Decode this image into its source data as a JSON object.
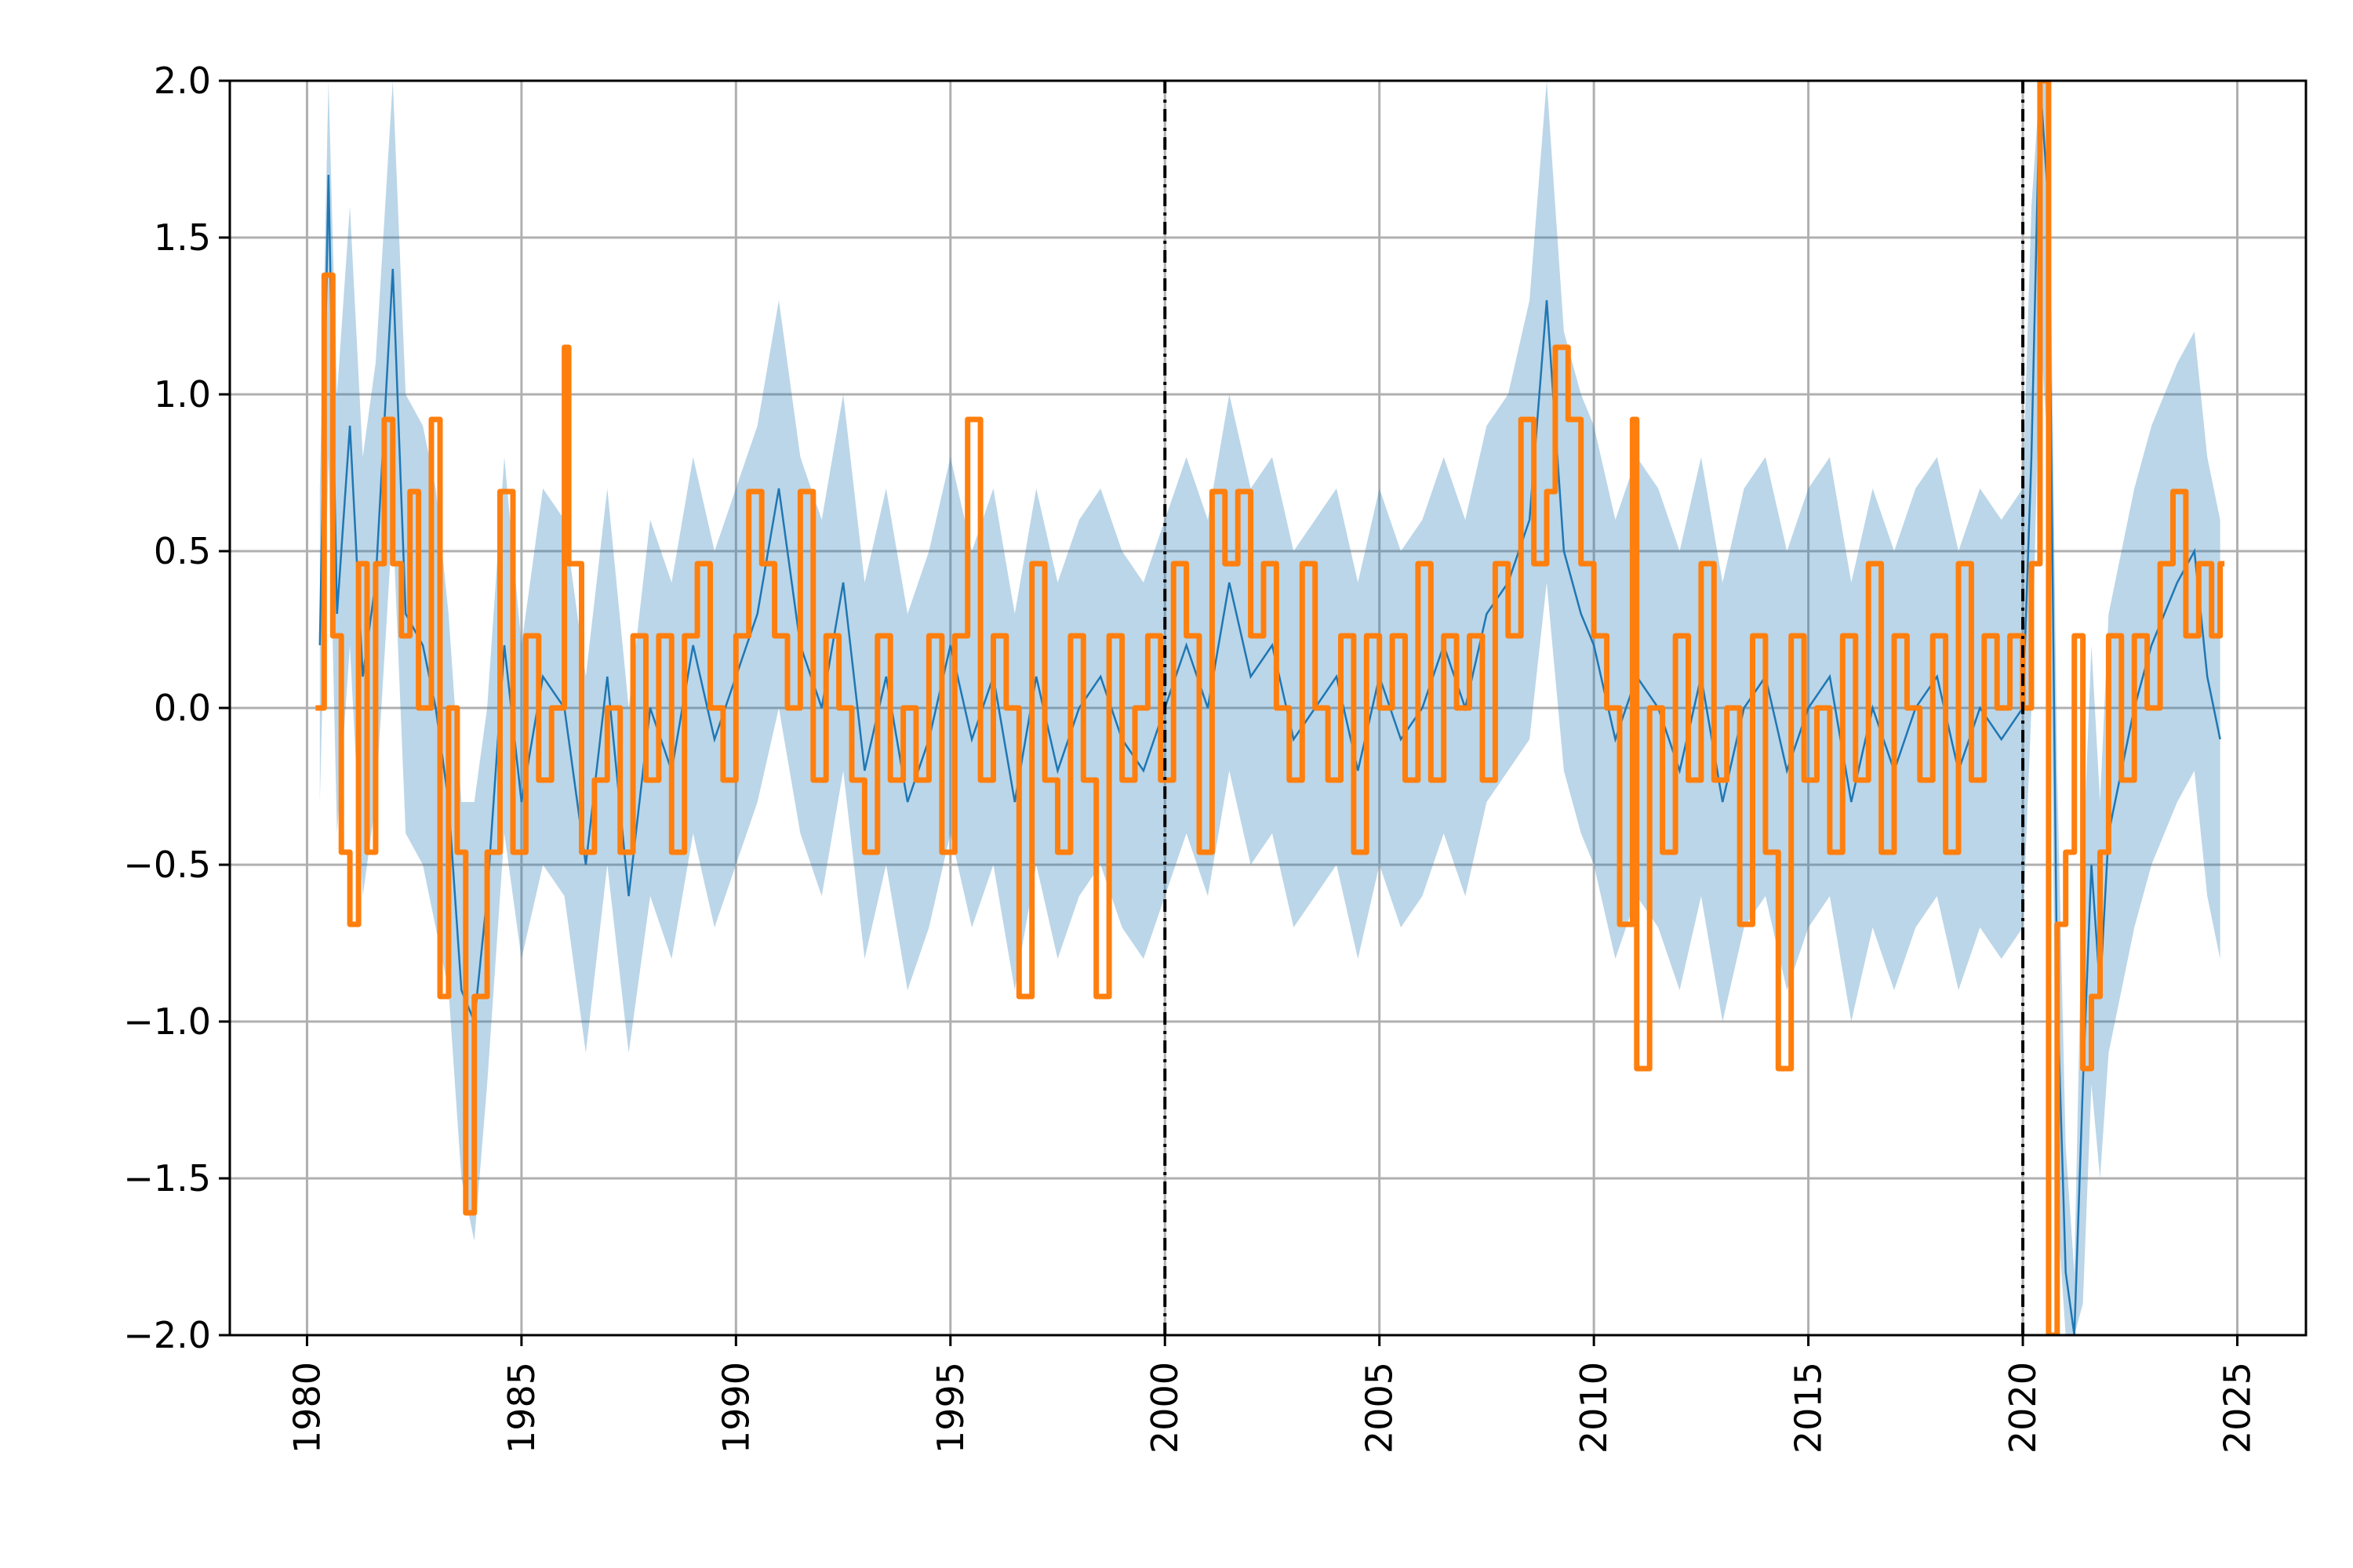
{
  "chart_data": {
    "type": "line",
    "title": "",
    "xlabel": "",
    "ylabel": "",
    "xlim": [
      1978.2,
      2026.6
    ],
    "ylim": [
      -2.0,
      2.0
    ],
    "grid": true,
    "legend": "none",
    "x_ticks": [
      {
        "value": 1980,
        "label": "1980"
      },
      {
        "value": 1985,
        "label": "1985"
      },
      {
        "value": 1990,
        "label": "1990"
      },
      {
        "value": 1995,
        "label": "1995"
      },
      {
        "value": 2000,
        "label": "2000"
      },
      {
        "value": 2005,
        "label": "2005"
      },
      {
        "value": 2010,
        "label": "2010"
      },
      {
        "value": 2015,
        "label": "2015"
      },
      {
        "value": 2020,
        "label": "2020"
      },
      {
        "value": 2025,
        "label": "2025"
      }
    ],
    "y_ticks": [
      {
        "value": 2.0,
        "label": "2.0"
      },
      {
        "value": 1.5,
        "label": "1.5"
      },
      {
        "value": 1.0,
        "label": "1.0"
      },
      {
        "value": 0.5,
        "label": "0.5"
      },
      {
        "value": 0.0,
        "label": "0.0"
      },
      {
        "value": -0.5,
        "label": "−0.5"
      },
      {
        "value": -1.0,
        "label": "−1.0"
      },
      {
        "value": -1.5,
        "label": "−1.5"
      },
      {
        "value": -2.0,
        "label": "−2.0"
      }
    ],
    "vertical_lines": [
      {
        "x": 2000.0,
        "style": "dash-dot",
        "color": "#000000"
      },
      {
        "x": 2020.0,
        "style": "dash-dot",
        "color": "#000000"
      }
    ],
    "colors": {
      "band": "#1f77b4",
      "band_opacity": 0.3,
      "mean_line": "#1f77b4",
      "step_line": "#ff7f0e",
      "grid": "#b0b0b0"
    },
    "series": [
      {
        "kind": "band_with_mean",
        "color": "#1f77b4",
        "x": [
          1980.3,
          1980.5,
          1980.7,
          1981.0,
          1981.3,
          1981.6,
          1982.0,
          1982.3,
          1982.7,
          1983.0,
          1983.3,
          1983.6,
          1983.9,
          1984.2,
          1984.6,
          1985.0,
          1985.5,
          1986.0,
          1986.5,
          1987.0,
          1987.5,
          1988.0,
          1988.5,
          1989.0,
          1989.5,
          1990.0,
          1990.5,
          1991.0,
          1991.5,
          1992.0,
          1992.5,
          1993.0,
          1993.5,
          1994.0,
          1994.5,
          1995.0,
          1995.5,
          1996.0,
          1996.5,
          1997.0,
          1997.5,
          1998.0,
          1998.5,
          1999.0,
          1999.5,
          2000.0,
          2000.5,
          2001.0,
          2001.5,
          2002.0,
          2002.5,
          2003.0,
          2003.5,
          2004.0,
          2004.5,
          2005.0,
          2005.5,
          2006.0,
          2006.5,
          2007.0,
          2007.5,
          2008.0,
          2008.5,
          2008.9,
          2009.1,
          2009.3,
          2009.7,
          2010.0,
          2010.5,
          2011.0,
          2011.5,
          2012.0,
          2012.5,
          2013.0,
          2013.5,
          2014.0,
          2014.5,
          2015.0,
          2015.5,
          2016.0,
          2016.5,
          2017.0,
          2017.5,
          2018.0,
          2018.5,
          2019.0,
          2019.5,
          2020.0,
          2020.2,
          2020.4,
          2020.6,
          2020.8,
          2021.0,
          2021.2,
          2021.4,
          2021.6,
          2021.8,
          2022.0,
          2022.3,
          2022.6,
          2023.0,
          2023.3,
          2023.6,
          2024.0,
          2024.3,
          2024.6
        ],
        "mean": [
          0.2,
          1.7,
          0.3,
          0.9,
          0.1,
          0.4,
          1.4,
          0.3,
          0.2,
          0.0,
          -0.3,
          -0.9,
          -1.0,
          -0.6,
          0.2,
          -0.3,
          0.1,
          0.0,
          -0.5,
          0.1,
          -0.6,
          0.0,
          -0.2,
          0.2,
          -0.1,
          0.1,
          0.3,
          0.7,
          0.2,
          0.0,
          0.4,
          -0.2,
          0.1,
          -0.3,
          -0.1,
          0.2,
          -0.1,
          0.1,
          -0.3,
          0.1,
          -0.2,
          0.0,
          0.1,
          -0.1,
          -0.2,
          0.0,
          0.2,
          0.0,
          0.4,
          0.1,
          0.2,
          -0.1,
          0.0,
          0.1,
          -0.2,
          0.1,
          -0.1,
          0.0,
          0.2,
          0.0,
          0.3,
          0.4,
          0.6,
          1.3,
          0.9,
          0.5,
          0.3,
          0.2,
          -0.1,
          0.1,
          0.0,
          -0.2,
          0.1,
          -0.3,
          0.0,
          0.1,
          -0.2,
          0.0,
          0.1,
          -0.3,
          0.0,
          -0.2,
          0.0,
          0.1,
          -0.2,
          0.0,
          -0.1,
          0.0,
          0.8,
          2.0,
          1.6,
          -0.9,
          -1.8,
          -2.0,
          -1.2,
          -0.5,
          -0.9,
          -0.4,
          -0.2,
          0.0,
          0.2,
          0.3,
          0.4,
          0.5,
          0.1,
          -0.1
        ],
        "lower": [
          -0.3,
          0.8,
          -0.4,
          0.2,
          -0.6,
          -0.3,
          0.6,
          -0.4,
          -0.5,
          -0.7,
          -0.9,
          -1.5,
          -1.7,
          -1.2,
          -0.4,
          -0.8,
          -0.5,
          -0.6,
          -1.1,
          -0.5,
          -1.1,
          -0.6,
          -0.8,
          -0.4,
          -0.7,
          -0.5,
          -0.3,
          0.0,
          -0.4,
          -0.6,
          -0.2,
          -0.8,
          -0.5,
          -0.9,
          -0.7,
          -0.4,
          -0.7,
          -0.5,
          -0.9,
          -0.5,
          -0.8,
          -0.6,
          -0.5,
          -0.7,
          -0.8,
          -0.6,
          -0.4,
          -0.6,
          -0.2,
          -0.5,
          -0.4,
          -0.7,
          -0.6,
          -0.5,
          -0.8,
          -0.5,
          -0.7,
          -0.6,
          -0.4,
          -0.6,
          -0.3,
          -0.2,
          -0.1,
          0.4,
          0.1,
          -0.2,
          -0.4,
          -0.5,
          -0.8,
          -0.6,
          -0.7,
          -0.9,
          -0.6,
          -1.0,
          -0.7,
          -0.6,
          -0.9,
          -0.7,
          -0.6,
          -1.0,
          -0.7,
          -0.9,
          -0.7,
          -0.6,
          -0.9,
          -0.7,
          -0.8,
          -0.7,
          0.0,
          1.2,
          0.8,
          -1.6,
          -2.0,
          -2.0,
          -1.9,
          -1.2,
          -1.5,
          -1.1,
          -0.9,
          -0.7,
          -0.5,
          -0.4,
          -0.3,
          -0.2,
          -0.6,
          -0.8
        ],
        "upper": [
          0.7,
          2.0,
          1.0,
          1.6,
          0.8,
          1.1,
          2.0,
          1.0,
          0.9,
          0.7,
          0.3,
          -0.3,
          -0.3,
          0.0,
          0.8,
          0.2,
          0.7,
          0.6,
          0.1,
          0.7,
          0.0,
          0.6,
          0.4,
          0.8,
          0.5,
          0.7,
          0.9,
          1.3,
          0.8,
          0.6,
          1.0,
          0.4,
          0.7,
          0.3,
          0.5,
          0.8,
          0.5,
          0.7,
          0.3,
          0.7,
          0.4,
          0.6,
          0.7,
          0.5,
          0.4,
          0.6,
          0.8,
          0.6,
          1.0,
          0.7,
          0.8,
          0.5,
          0.6,
          0.7,
          0.4,
          0.7,
          0.5,
          0.6,
          0.8,
          0.6,
          0.9,
          1.0,
          1.3,
          2.0,
          1.6,
          1.2,
          1.0,
          0.9,
          0.6,
          0.8,
          0.7,
          0.5,
          0.8,
          0.4,
          0.7,
          0.8,
          0.5,
          0.7,
          0.8,
          0.4,
          0.7,
          0.5,
          0.7,
          0.8,
          0.5,
          0.7,
          0.6,
          0.7,
          1.6,
          2.0,
          2.0,
          -0.2,
          -1.4,
          -1.8,
          -0.5,
          0.2,
          -0.3,
          0.3,
          0.5,
          0.7,
          0.9,
          1.0,
          1.1,
          1.2,
          0.8,
          0.6
        ]
      },
      {
        "kind": "step",
        "color": "#ff7f0e",
        "x": [
          1980.2,
          1980.4,
          1980.6,
          1980.8,
          1981.0,
          1981.2,
          1981.4,
          1981.6,
          1981.8,
          1982.0,
          1982.2,
          1982.4,
          1982.6,
          1982.9,
          1983.1,
          1983.3,
          1983.5,
          1983.7,
          1983.9,
          1984.2,
          1984.5,
          1984.8,
          1985.1,
          1985.4,
          1985.7,
          1986.0,
          1986.1,
          1986.4,
          1986.7,
          1987.0,
          1987.3,
          1987.6,
          1987.9,
          1988.2,
          1988.5,
          1988.8,
          1989.1,
          1989.4,
          1989.7,
          1990.0,
          1990.3,
          1990.6,
          1990.9,
          1991.2,
          1991.5,
          1991.8,
          1992.1,
          1992.4,
          1992.7,
          1993.0,
          1993.3,
          1993.6,
          1993.9,
          1994.2,
          1994.5,
          1994.8,
          1995.1,
          1995.4,
          1995.7,
          1996.0,
          1996.3,
          1996.6,
          1996.9,
          1997.2,
          1997.5,
          1997.8,
          1998.1,
          1998.4,
          1998.7,
          1999.0,
          1999.3,
          1999.6,
          1999.9,
          2000.2,
          2000.5,
          2000.8,
          2001.1,
          2001.4,
          2001.7,
          2002.0,
          2002.3,
          2002.6,
          2002.9,
          2003.2,
          2003.5,
          2003.8,
          2004.1,
          2004.4,
          2004.7,
          2005.0,
          2005.3,
          2005.6,
          2005.9,
          2006.2,
          2006.5,
          2006.8,
          2007.1,
          2007.4,
          2007.7,
          2008.0,
          2008.3,
          2008.6,
          2008.9,
          2009.1,
          2009.4,
          2009.7,
          2010.0,
          2010.3,
          2010.6,
          2010.9,
          2011.0,
          2011.3,
          2011.6,
          2011.9,
          2012.2,
          2012.5,
          2012.8,
          2013.1,
          2013.4,
          2013.7,
          2014.0,
          2014.3,
          2014.6,
          2014.9,
          2015.2,
          2015.5,
          2015.8,
          2016.1,
          2016.4,
          2016.7,
          2017.0,
          2017.3,
          2017.6,
          2017.9,
          2018.2,
          2018.5,
          2018.8,
          2019.1,
          2019.4,
          2019.7,
          2020.0,
          2020.2,
          2020.4,
          2020.6,
          2020.8,
          2021.0,
          2021.2,
          2021.4,
          2021.6,
          2021.8,
          2022.0,
          2022.3,
          2022.6,
          2022.9,
          2023.2,
          2023.5,
          2023.8,
          2024.1,
          2024.4,
          2024.6
        ],
        "y": [
          0.0,
          1.38,
          0.23,
          -0.46,
          -0.69,
          0.46,
          -0.46,
          0.46,
          0.92,
          0.46,
          0.23,
          0.69,
          0.0,
          0.92,
          -0.92,
          0.0,
          -0.46,
          -1.61,
          -0.92,
          -0.46,
          0.69,
          -0.46,
          0.23,
          -0.23,
          0.0,
          1.15,
          0.46,
          -0.46,
          -0.23,
          0.0,
          -0.46,
          0.23,
          -0.23,
          0.23,
          -0.46,
          0.23,
          0.46,
          0.0,
          -0.23,
          0.23,
          0.69,
          0.46,
          0.23,
          0.0,
          0.69,
          -0.23,
          0.23,
          0.0,
          -0.23,
          -0.46,
          0.23,
          -0.23,
          0.0,
          -0.23,
          0.23,
          -0.46,
          0.23,
          0.92,
          -0.23,
          0.23,
          0.0,
          -0.92,
          0.46,
          -0.23,
          -0.46,
          0.23,
          -0.23,
          -0.92,
          0.23,
          -0.23,
          0.0,
          0.23,
          -0.23,
          0.46,
          0.23,
          -0.46,
          0.69,
          0.46,
          0.69,
          0.23,
          0.46,
          0.0,
          -0.23,
          0.46,
          0.0,
          -0.23,
          0.23,
          -0.46,
          0.23,
          0.0,
          0.23,
          -0.23,
          0.46,
          -0.23,
          0.23,
          0.0,
          0.23,
          -0.23,
          0.46,
          0.23,
          0.92,
          0.46,
          0.69,
          1.15,
          0.92,
          0.46,
          0.23,
          0.0,
          -0.69,
          0.92,
          -1.15,
          0.0,
          -0.46,
          0.23,
          -0.23,
          0.46,
          -0.23,
          0.0,
          -0.69,
          0.23,
          -0.46,
          -1.15,
          0.23,
          -0.23,
          0.0,
          -0.46,
          0.23,
          -0.23,
          0.46,
          -0.46,
          0.23,
          0.0,
          -0.23,
          0.23,
          -0.46,
          0.46,
          -0.23,
          0.23,
          0.0,
          0.23,
          0.0,
          0.46,
          2.0,
          -2.0,
          -0.69,
          -0.46,
          0.23,
          -1.15,
          -0.92,
          -0.46,
          0.23,
          -0.23,
          0.23,
          0.0,
          0.46,
          0.69,
          0.23,
          0.46,
          0.23,
          0.46
        ]
      }
    ]
  }
}
